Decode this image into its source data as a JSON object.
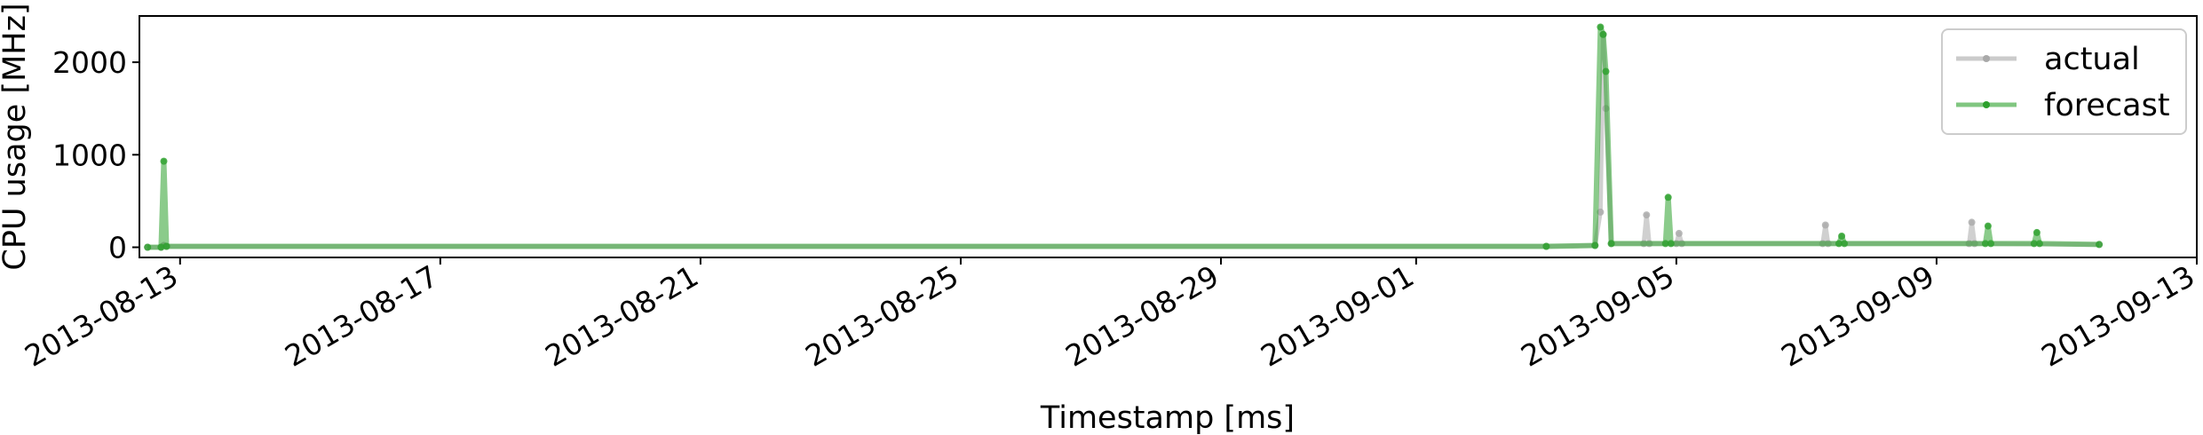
{
  "chart_data": {
    "type": "line",
    "title": "",
    "xlabel": "Timestamp [ms]",
    "ylabel": "CPU usage [MHz]",
    "x_ticks": [
      "2013-08-13",
      "2013-08-17",
      "2013-08-21",
      "2013-08-25",
      "2013-08-29",
      "2013-09-01",
      "2013-09-05",
      "2013-09-09",
      "2013-09-13"
    ],
    "y_ticks": [
      0,
      1000,
      2000
    ],
    "xlim": [
      "2013-08-12T09:00",
      "2013-09-13T00:00"
    ],
    "ylim": [
      -110,
      2500
    ],
    "grid": false,
    "legend_position": "top-right",
    "series": [
      {
        "name": "actual",
        "color": "#a9a9a9",
        "points": [
          [
            "2013-08-12T12:00",
            0
          ],
          [
            "2013-08-12T17:00",
            0
          ],
          [
            "2013-08-12T18:00",
            20
          ],
          [
            "2013-08-12T19:00",
            10
          ],
          [
            "2013-09-03T00:00",
            10
          ],
          [
            "2013-09-03T18:00",
            20
          ],
          [
            "2013-09-03T20:00",
            380
          ],
          [
            "2013-09-03T21:00",
            2300
          ],
          [
            "2013-09-03T22:00",
            1500
          ],
          [
            "2013-09-04T00:00",
            40
          ],
          [
            "2013-09-04T12:00",
            40
          ],
          [
            "2013-09-04T13:00",
            350
          ],
          [
            "2013-09-04T14:00",
            40
          ],
          [
            "2013-09-05T00:00",
            40
          ],
          [
            "2013-09-05T01:00",
            150
          ],
          [
            "2013-09-05T02:00",
            40
          ],
          [
            "2013-09-07T06:00",
            40
          ],
          [
            "2013-09-07T07:00",
            240
          ],
          [
            "2013-09-07T08:00",
            40
          ],
          [
            "2013-09-09T12:00",
            40
          ],
          [
            "2013-09-09T13:00",
            270
          ],
          [
            "2013-09-09T14:00",
            40
          ],
          [
            "2013-09-11T12:00",
            30
          ]
        ]
      },
      {
        "name": "forecast",
        "color": "#2ca02c",
        "points": [
          [
            "2013-08-12T12:00",
            0
          ],
          [
            "2013-08-12T17:00",
            0
          ],
          [
            "2013-08-12T18:00",
            930
          ],
          [
            "2013-08-12T19:00",
            10
          ],
          [
            "2013-09-03T00:00",
            10
          ],
          [
            "2013-09-03T18:00",
            20
          ],
          [
            "2013-09-03T20:00",
            2380
          ],
          [
            "2013-09-03T21:00",
            2300
          ],
          [
            "2013-09-03T22:00",
            1900
          ],
          [
            "2013-09-04T00:00",
            40
          ],
          [
            "2013-09-04T20:00",
            40
          ],
          [
            "2013-09-04T21:00",
            540
          ],
          [
            "2013-09-04T22:00",
            40
          ],
          [
            "2013-09-07T12:00",
            40
          ],
          [
            "2013-09-07T13:00",
            120
          ],
          [
            "2013-09-07T14:00",
            40
          ],
          [
            "2013-09-09T18:00",
            40
          ],
          [
            "2013-09-09T19:00",
            230
          ],
          [
            "2013-09-09T20:00",
            40
          ],
          [
            "2013-09-10T12:00",
            40
          ],
          [
            "2013-09-10T13:00",
            160
          ],
          [
            "2013-09-10T14:00",
            40
          ],
          [
            "2013-09-11T12:00",
            30
          ]
        ]
      }
    ]
  }
}
